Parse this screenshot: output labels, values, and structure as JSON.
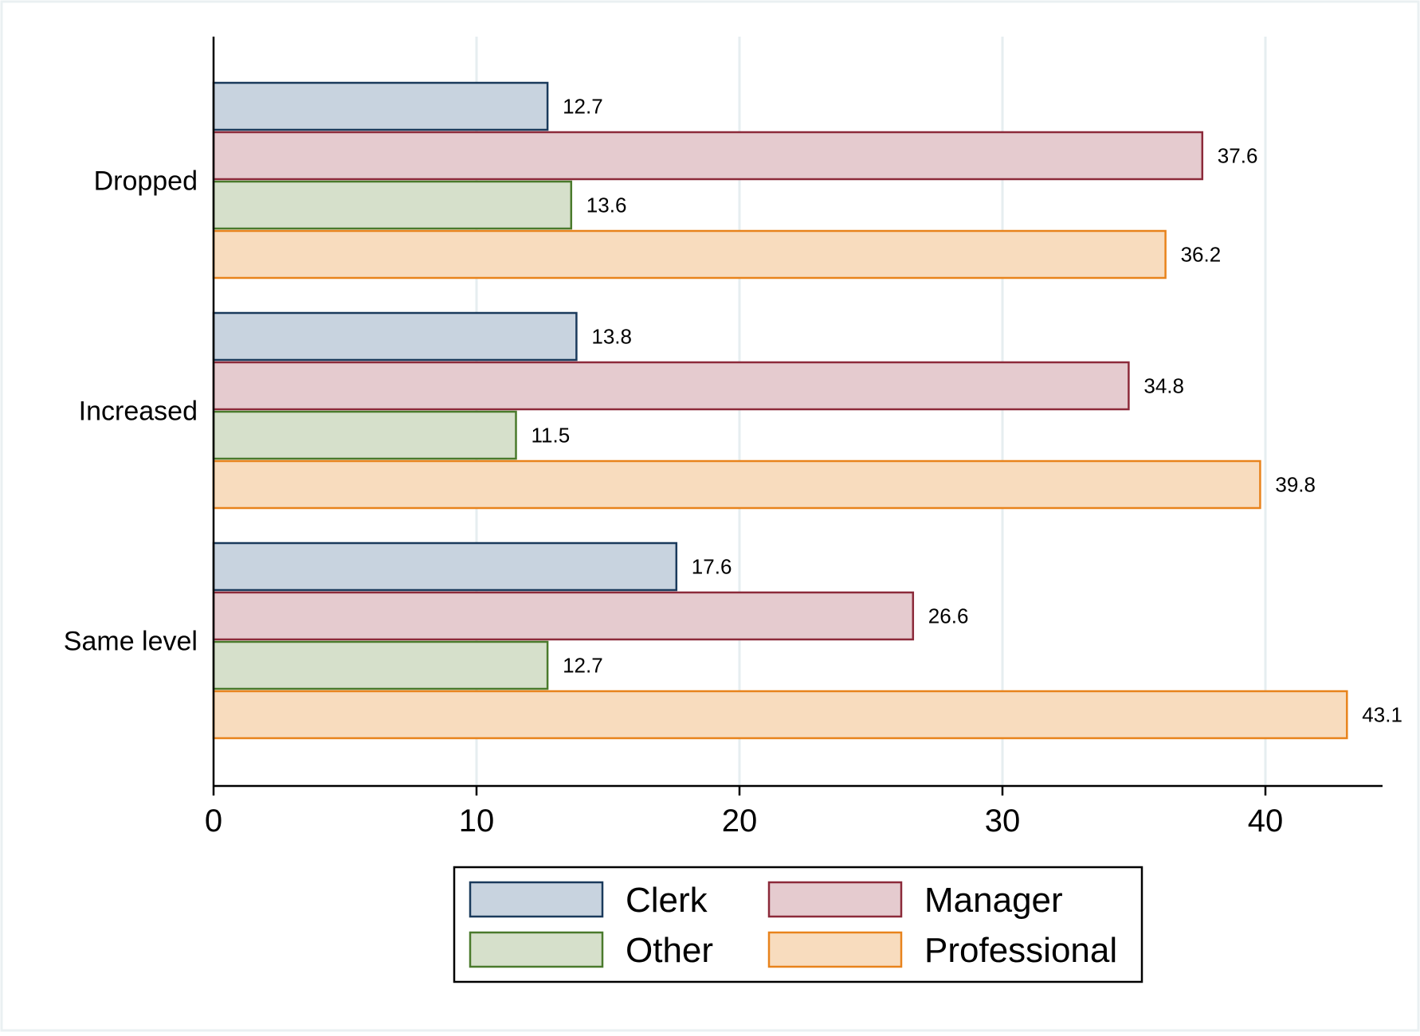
{
  "chart_data": {
    "type": "bar",
    "orientation": "horizontal",
    "title": "",
    "xlabel": "",
    "ylabel": "",
    "categories": [
      "Dropped",
      "Increased",
      "Same level"
    ],
    "series": [
      {
        "name": "Clerk",
        "values": [
          12.7,
          13.8,
          17.6
        ],
        "fill": "#c8d3df",
        "stroke": "#1a3a5c"
      },
      {
        "name": "Manager",
        "values": [
          37.6,
          34.8,
          26.6
        ],
        "fill": "#e5cbcf",
        "stroke": "#8c2a3a"
      },
      {
        "name": "Other",
        "values": [
          13.6,
          11.5,
          12.7
        ],
        "fill": "#d6e0cb",
        "stroke": "#4a7a2c"
      },
      {
        "name": "Professional",
        "values": [
          36.2,
          39.8,
          43.1
        ],
        "fill": "#f8dcbe",
        "stroke": "#e8831c"
      }
    ],
    "value_labels": [
      [
        "12.7",
        "37.6",
        "13.6",
        "36.2"
      ],
      [
        "13.8",
        "34.8",
        "11.5",
        "39.8"
      ],
      [
        "17.6",
        "26.6",
        "12.7",
        "43.1"
      ]
    ],
    "xticks": [
      0,
      10,
      20,
      30,
      40
    ],
    "xtick_labels": [
      "0",
      "10",
      "20",
      "30",
      "40"
    ],
    "xlim": [
      0,
      44.5
    ],
    "grid": true,
    "grid_color": "#e6eef0",
    "legend": {
      "position": "bottom",
      "columns": 2
    }
  }
}
